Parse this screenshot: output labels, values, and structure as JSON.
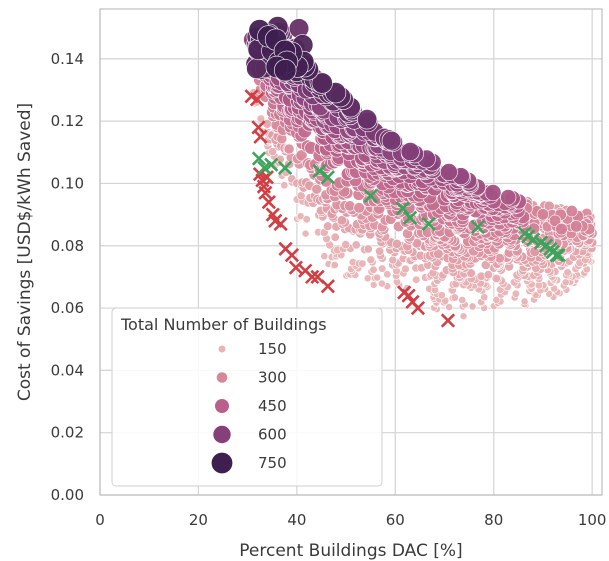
{
  "chart_data": {
    "type": "scatter",
    "xlabel": "Percent Buildings DAC [%]",
    "ylabel": "Cost of Savings [USD$/kWh Saved]",
    "xlim": [
      0,
      102
    ],
    "ylim": [
      0,
      0.156
    ],
    "x_ticks": [
      "0",
      "20",
      "40",
      "60",
      "80",
      "100"
    ],
    "y_ticks": [
      "0.00",
      "0.02",
      "0.04",
      "0.06",
      "0.08",
      "0.10",
      "0.12",
      "0.14"
    ],
    "grid": true,
    "legend": {
      "title": "Total Number of Buildings",
      "placement": "lower-left",
      "entries": [
        {
          "label": "150",
          "size": 150,
          "color": "#e8b4b6"
        },
        {
          "label": "300",
          "size": 300,
          "color": "#d6879a"
        },
        {
          "label": "450",
          "size": 450,
          "color": "#b8608a"
        },
        {
          "label": "600",
          "size": 600,
          "color": "#85407a"
        },
        {
          "label": "750",
          "size": 750,
          "color": "#3e1f4f"
        }
      ]
    },
    "colors": {
      "red_marker": "#d13f44",
      "green_marker": "#3aa55a",
      "grid": "#d4d4d4",
      "spine": "#bdbdbd"
    },
    "series": [
      {
        "marker": "x",
        "color": "#d13f44",
        "x": [
          30.8,
          31.9,
          32.2,
          32.6,
          32.5,
          33.0,
          33.3,
          33.6,
          33.9,
          34.3,
          35.1,
          35.6,
          36.7,
          37.7,
          39.0,
          39.8,
          41.7,
          43.1,
          44.2,
          46.3,
          61.8,
          62.7,
          63.5,
          64.6,
          70.7
        ],
        "y": [
          0.128,
          0.127,
          0.118,
          0.115,
          0.103,
          0.101,
          0.099,
          0.097,
          0.102,
          0.094,
          0.09,
          0.088,
          0.087,
          0.079,
          0.077,
          0.073,
          0.072,
          0.07,
          0.07,
          0.067,
          0.065,
          0.064,
          0.062,
          0.06,
          0.056
        ]
      },
      {
        "marker": "x",
        "color": "#3aa55a",
        "x": [
          32.3,
          33.4,
          34.8,
          37.6,
          44.6,
          46.3,
          55.0,
          61.5,
          63.0,
          66.8,
          76.8,
          86.3,
          87.0,
          88.0,
          89.6,
          90.6,
          91.5,
          92.0,
          92.8,
          93.2
        ],
        "y": [
          0.108,
          0.105,
          0.106,
          0.105,
          0.104,
          0.102,
          0.096,
          0.092,
          0.089,
          0.087,
          0.086,
          0.084,
          0.083,
          0.082,
          0.081,
          0.08,
          0.079,
          0.078,
          0.077,
          0.077
        ]
      }
    ]
  }
}
